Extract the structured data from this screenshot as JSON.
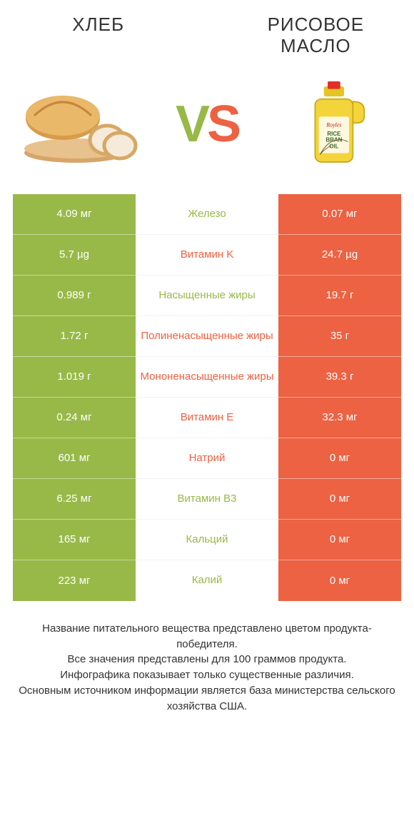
{
  "colors": {
    "green": "#98b948",
    "orange": "#ec6242",
    "vs_v": "#98b948",
    "vs_s": "#ec6242",
    "bg": "#ffffff",
    "text": "#333333"
  },
  "titles": {
    "left": "ХЛЕБ",
    "right": "РИСОВОЕ МАСЛО"
  },
  "vs": {
    "v": "V",
    "s": "S"
  },
  "rows": [
    {
      "left": "4.09 мг",
      "mid": "Железо",
      "right": "0.07 мг",
      "winner": "left"
    },
    {
      "left": "5.7 µg",
      "mid": "Витамин K",
      "right": "24.7 µg",
      "winner": "right"
    },
    {
      "left": "0.989 г",
      "mid": "Насыщенные жиры",
      "right": "19.7 г",
      "winner": "left"
    },
    {
      "left": "1.72 г",
      "mid": "Полиненасыщенные жиры",
      "right": "35 г",
      "winner": "right"
    },
    {
      "left": "1.019 г",
      "mid": "Мононенасыщенные жиры",
      "right": "39.3 г",
      "winner": "right"
    },
    {
      "left": "0.24 мг",
      "mid": "Витамин E",
      "right": "32.3 мг",
      "winner": "right"
    },
    {
      "left": "601 мг",
      "mid": "Натрий",
      "right": "0 мг",
      "winner": "right"
    },
    {
      "left": "6.25 мг",
      "mid": "Витамин B3",
      "right": "0 мг",
      "winner": "left"
    },
    {
      "left": "165 мг",
      "mid": "Кальций",
      "right": "0 мг",
      "winner": "left"
    },
    {
      "left": "223 мг",
      "mid": "Калий",
      "right": "0 мг",
      "winner": "left"
    }
  ],
  "footer_lines": [
    "Название питательного вещества представлено цветом продукта-победителя.",
    "Все значения представлены для 100 граммов продукта.",
    "Инфографика показывает только существенные различия.",
    "Основным источником информации является база министерства сельского хозяйства США."
  ]
}
